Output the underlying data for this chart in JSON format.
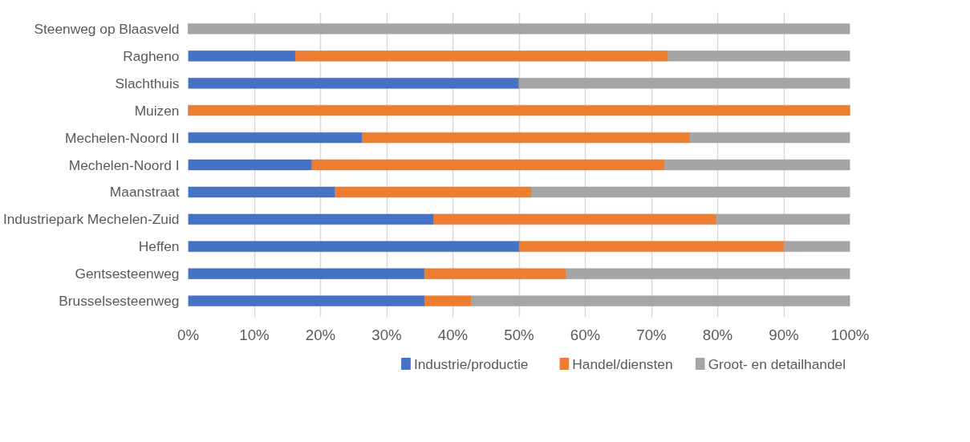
{
  "chart_data": {
    "type": "bar",
    "orientation": "horizontal",
    "stacked": true,
    "categories": [
      "Steenweg op Blaasveld",
      "Ragheno",
      "Slachthuis",
      "Muizen",
      "Mechelen-Noord II",
      "Mechelen-Noord I",
      "Maanstraat",
      "Industriepark Mechelen-Zuid",
      "Heffen",
      "Gentsesteenweg",
      "Brusselsesteenweg"
    ],
    "series": [
      {
        "name": "Industrie/productie",
        "color": "#4472c4",
        "values": [
          0,
          16.2,
          50,
          0,
          26.3,
          18.7,
          22.2,
          37.1,
          50,
          35.7,
          35.7
        ]
      },
      {
        "name": "Handel/diensten",
        "color": "#ed7d31",
        "values": [
          0,
          56.3,
          0,
          100,
          49.5,
          53.3,
          29.7,
          42.7,
          40,
          21.4,
          7.1
        ]
      },
      {
        "name": "Groot- en detailhandel",
        "color": "#a5a5a5",
        "values": [
          100,
          27.5,
          50,
          0,
          24.2,
          28.0,
          48.1,
          20.2,
          10,
          42.9,
          57.2
        ]
      }
    ],
    "xlim": [
      0,
      100
    ],
    "xticks": [
      {
        "value": 0,
        "label": "0%"
      },
      {
        "value": 10,
        "label": "10%"
      },
      {
        "value": 20,
        "label": "20%"
      },
      {
        "value": 30,
        "label": "30%"
      },
      {
        "value": 40,
        "label": "40%"
      },
      {
        "value": 50,
        "label": "50%"
      },
      {
        "value": 60,
        "label": "60%"
      },
      {
        "value": 70,
        "label": "70%"
      },
      {
        "value": 80,
        "label": "80%"
      },
      {
        "value": 90,
        "label": "90%"
      },
      {
        "value": 100,
        "label": "100%"
      }
    ],
    "grid": "x",
    "legend": "bottom"
  }
}
